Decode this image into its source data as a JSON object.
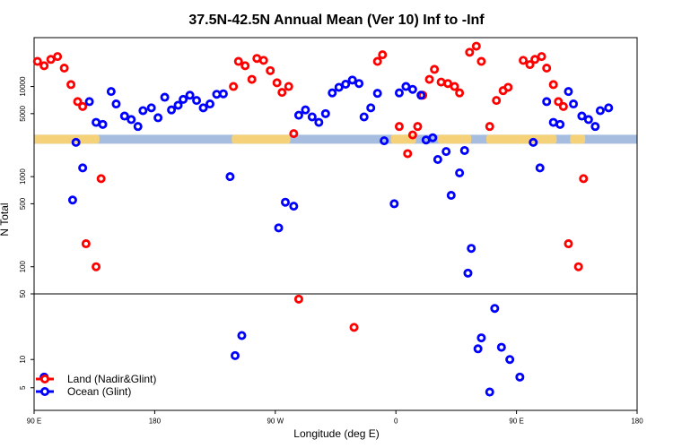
{
  "chart_data": {
    "type": "scatter",
    "title": "37.5N-42.5N Annual Mean (Ver 10)   Inf to -Inf",
    "xlabel": "Longitude (deg E)",
    "ylabel": "N Total",
    "xlim": [
      90,
      450
    ],
    "ylim_upper": [
      50,
      40000
    ],
    "ylim_lower": [
      3,
      50
    ],
    "yscale": "log",
    "x_ticks": [
      {
        "v": 90,
        "label": "90 E"
      },
      {
        "v": 162,
        "label": "180"
      },
      {
        "v": 234,
        "label": "90 W"
      },
      {
        "v": 306,
        "label": "0"
      },
      {
        "v": 378,
        "label": "90 E"
      },
      {
        "v": 450,
        "label": "180"
      }
    ],
    "y_ticks_upper": [
      {
        "v": 10000,
        "label": "10000"
      },
      {
        "v": 5000,
        "label": "5000"
      },
      {
        "v": 1000,
        "label": "1000"
      },
      {
        "v": 500,
        "label": "500"
      },
      {
        "v": 100,
        "label": "100"
      },
      {
        "v": 50,
        "label": "50"
      }
    ],
    "y_ticks_lower": [
      {
        "v": 10,
        "label": "10"
      },
      {
        "v": 5,
        "label": "5"
      }
    ],
    "band": {
      "y": 2600,
      "base_color": "#a7bde0",
      "land_color": "#f5d27a",
      "land_ranges": [
        [
          90,
          129
        ],
        [
          208,
          243
        ],
        [
          303,
          318
        ],
        [
          331,
          351
        ],
        [
          360,
          402
        ],
        [
          410,
          419
        ]
      ]
    },
    "legend": {
      "position": "bottom-left",
      "entries": [
        {
          "name": "Land (Nadir&Glint)",
          "color": "#ff0000"
        },
        {
          "name": "Ocean (Glint)",
          "color": "#0000ff"
        }
      ]
    },
    "series": [
      {
        "name": "Land (Nadir&Glint)",
        "color": "#ff0000",
        "points": [
          [
            92,
            19000
          ],
          [
            96,
            17000
          ],
          [
            100,
            20000
          ],
          [
            104,
            21500
          ],
          [
            108,
            16000
          ],
          [
            112,
            10500
          ],
          [
            116,
            6800
          ],
          [
            119,
            6000
          ],
          [
            121,
            180
          ],
          [
            127,
            100
          ],
          [
            130,
            950
          ],
          [
            209,
            10000
          ],
          [
            212,
            19000
          ],
          [
            216,
            17000
          ],
          [
            220,
            12000
          ],
          [
            223,
            20500
          ],
          [
            227,
            19500
          ],
          [
            231,
            15000
          ],
          [
            235,
            11000
          ],
          [
            238,
            8600
          ],
          [
            242,
            10000
          ],
          [
            245,
            3000
          ],
          [
            248,
            44
          ],
          [
            281,
            22
          ],
          [
            295,
            19000
          ],
          [
            298,
            22500
          ],
          [
            308,
            3600
          ],
          [
            313,
            1800
          ],
          [
            316,
            2900
          ],
          [
            319,
            3600
          ],
          [
            322,
            8000
          ],
          [
            326,
            12000
          ],
          [
            329,
            15500
          ],
          [
            333,
            11200
          ],
          [
            337,
            10800
          ],
          [
            341,
            10000
          ],
          [
            344,
            8500
          ],
          [
            350,
            24000
          ],
          [
            354,
            28000
          ],
          [
            357,
            19000
          ],
          [
            362,
            3600
          ],
          [
            366,
            7000
          ],
          [
            370,
            9000
          ],
          [
            373,
            9800
          ],
          [
            382,
            19500
          ],
          [
            386,
            17500
          ],
          [
            389,
            20000
          ],
          [
            393,
            21500
          ],
          [
            396,
            16000
          ],
          [
            400,
            10500
          ],
          [
            403,
            6800
          ],
          [
            406,
            6000
          ],
          [
            409,
            180
          ],
          [
            415,
            100
          ],
          [
            418,
            950
          ]
        ]
      },
      {
        "name": "Ocean (Glint)",
        "color": "#0000ff",
        "points": [
          [
            96,
            6.5
          ],
          [
            113,
            550
          ],
          [
            115,
            2400
          ],
          [
            119,
            1250
          ],
          [
            123,
            6800
          ],
          [
            127,
            4000
          ],
          [
            131,
            3800
          ],
          [
            136,
            8800
          ],
          [
            139,
            6400
          ],
          [
            144,
            4700
          ],
          [
            148,
            4300
          ],
          [
            152,
            3600
          ],
          [
            155,
            5400
          ],
          [
            160,
            5800
          ],
          [
            164,
            4500
          ],
          [
            168,
            7600
          ],
          [
            172,
            5500
          ],
          [
            176,
            6200
          ],
          [
            179,
            7200
          ],
          [
            183,
            8000
          ],
          [
            187,
            7000
          ],
          [
            191,
            5800
          ],
          [
            195,
            6400
          ],
          [
            199,
            8200
          ],
          [
            203,
            8300
          ],
          [
            207,
            1000
          ],
          [
            210,
            11
          ],
          [
            214,
            18
          ],
          [
            236,
            270
          ],
          [
            240,
            520
          ],
          [
            245,
            470
          ],
          [
            248,
            4800
          ],
          [
            252,
            5500
          ],
          [
            256,
            4600
          ],
          [
            260,
            4000
          ],
          [
            264,
            5000
          ],
          [
            268,
            8500
          ],
          [
            272,
            9800
          ],
          [
            276,
            10600
          ],
          [
            280,
            11800
          ],
          [
            284,
            10800
          ],
          [
            287,
            4600
          ],
          [
            291,
            5800
          ],
          [
            295,
            8400
          ],
          [
            299,
            2500
          ],
          [
            305,
            500
          ],
          [
            308,
            8500
          ],
          [
            312,
            10000
          ],
          [
            316,
            9300
          ],
          [
            321,
            8000
          ],
          [
            324,
            2550
          ],
          [
            328,
            2700
          ],
          [
            331,
            1550
          ],
          [
            336,
            1900
          ],
          [
            339,
            620
          ],
          [
            344,
            1100
          ],
          [
            347,
            1950
          ],
          [
            351,
            160
          ],
          [
            355,
            13
          ],
          [
            357,
            17
          ],
          [
            362,
            4.5
          ],
          [
            374,
            10
          ],
          [
            380,
            6.5
          ],
          [
            388,
            2400
          ],
          [
            392,
            1250
          ],
          [
            396,
            6800
          ],
          [
            400,
            4000
          ],
          [
            404,
            3800
          ],
          [
            409,
            8800
          ],
          [
            412,
            6400
          ],
          [
            417,
            4700
          ],
          [
            421,
            4300
          ],
          [
            425,
            3600
          ],
          [
            428,
            5400
          ],
          [
            433,
            5800
          ],
          [
            349,
            85
          ],
          [
            365,
            35
          ],
          [
            369,
            13.5
          ]
        ]
      }
    ]
  }
}
